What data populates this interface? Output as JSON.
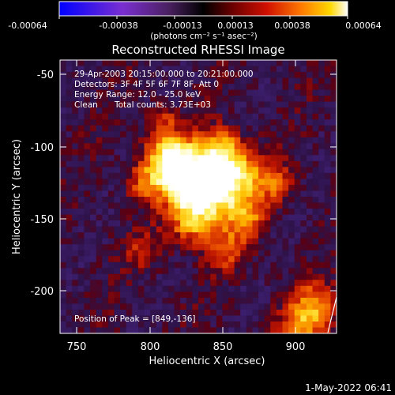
{
  "colorbar": {
    "tick_labels": [
      "-0.00064",
      "-0.00038",
      "-0.00013",
      "0.00013",
      "0.00038",
      "0.00064"
    ],
    "units": "(photons cm⁻² s⁻¹ asec⁻²)"
  },
  "plot": {
    "title": "Reconstructed RHESSI Image",
    "xlabel": "Heliocentric X (arcsec)",
    "ylabel": "Heliocentric Y (arcsec)",
    "x_ticks": [
      "750",
      "800",
      "850",
      "900"
    ],
    "y_ticks": [
      "-50",
      "-100",
      "-150",
      "-200"
    ],
    "xlim": [
      740,
      930
    ],
    "ylim": [
      -230,
      -40
    ]
  },
  "annotations": {
    "time_range": "29-Apr-2003 20:15:00.000 to 20:21:00.000",
    "detectors": "Detectors: 3F 4F 5F 6F 7F 8F, Att 0",
    "energy": "Energy Range: 12.0 - 25.0 keV",
    "clean_label": "Clean",
    "total_counts": "Total counts: 3.73E+03",
    "peak": "Position of Peak = [849,-136]"
  },
  "footer": {
    "date": "1-May-2022 06:41"
  }
}
